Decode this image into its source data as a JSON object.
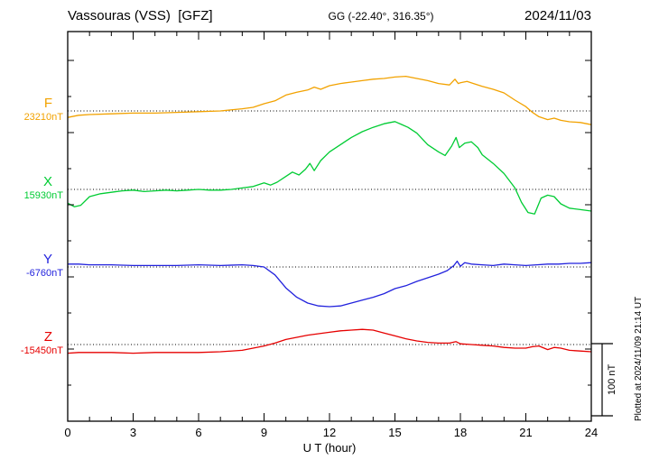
{
  "header": {
    "station_title": "Vassouras (VSS)  [GFZ]",
    "geo_coords": "GG (-22.40°, 316.35°)",
    "date": "2024/11/03"
  },
  "x_axis": {
    "label": "U T (hour)"
  },
  "scale_bar": {
    "label": "100 nT"
  },
  "plot_note": "Plotted at 2024/11/09 21:14 UT",
  "chart_data": {
    "type": "line",
    "title": "Vassouras (VSS) [GFZ] magnetogram for 2024/11/03",
    "xlabel": "U T (hour)",
    "x_range": [
      0,
      24
    ],
    "x_ticks": [
      0,
      3,
      6,
      9,
      12,
      15,
      18,
      21,
      24
    ],
    "grid": "dotted horizontal baseline per component",
    "scale_bar_nT": 100,
    "series": [
      {
        "name": "F",
        "color": "#f2a200",
        "baseline_label": "23210nT",
        "baseline_nT": 23210,
        "unit": "nT",
        "x": [
          0,
          0.5,
          1,
          2,
          3,
          4,
          5,
          6,
          7,
          8,
          8.5,
          9,
          9.5,
          10,
          10.5,
          11,
          11.3,
          11.6,
          12,
          12.5,
          13,
          13.5,
          14,
          14.5,
          15,
          15.5,
          16,
          16.5,
          17,
          17.5,
          17.75,
          17.9,
          18,
          18.3,
          18.6,
          19,
          19.5,
          20,
          20.5,
          21,
          21.3,
          21.6,
          22,
          22.3,
          22.6,
          23,
          23.5,
          24
        ],
        "deviation_nT": [
          -9,
          -6,
          -5,
          -4,
          -3,
          -3,
          -2,
          -1,
          0,
          3,
          5,
          10,
          14,
          22,
          26,
          29,
          33,
          30,
          35,
          38,
          40,
          42,
          44,
          45,
          47,
          48,
          45,
          42,
          38,
          36,
          44,
          38,
          39,
          41,
          38,
          34,
          30,
          25,
          15,
          6,
          -2,
          -8,
          -12,
          -10,
          -13,
          -15,
          -16,
          -19
        ]
      },
      {
        "name": "X",
        "color": "#00cc33",
        "baseline_label": "15930nT",
        "baseline_nT": 15930,
        "unit": "nT",
        "x": [
          0,
          0.3,
          0.6,
          1,
          1.5,
          2,
          2.5,
          3,
          3.5,
          4,
          4.5,
          5,
          5.5,
          6,
          6.5,
          7,
          7.5,
          8,
          8.5,
          9,
          9.3,
          9.6,
          10,
          10.3,
          10.6,
          10.9,
          11.1,
          11.3,
          11.6,
          12,
          12.5,
          13,
          13.5,
          14,
          14.5,
          15,
          15.3,
          15.6,
          16,
          16.5,
          17,
          17.3,
          17.6,
          17.8,
          17.95,
          18.2,
          18.5,
          18.8,
          19,
          19.5,
          20,
          20.5,
          20.8,
          21.1,
          21.4,
          21.7,
          22,
          22.3,
          22.6,
          23,
          23.5,
          24
        ],
        "deviation_nT": [
          -19,
          -24,
          -22,
          -10,
          -6,
          -4,
          -2,
          -1,
          -3,
          -2,
          -1,
          -2,
          -1,
          0,
          -1,
          -1,
          0,
          2,
          4,
          9,
          6,
          10,
          18,
          24,
          20,
          28,
          36,
          26,
          40,
          52,
          62,
          72,
          80,
          86,
          91,
          94,
          90,
          86,
          78,
          62,
          52,
          47,
          60,
          72,
          58,
          64,
          66,
          58,
          48,
          36,
          22,
          2,
          -18,
          -32,
          -34,
          -12,
          -8,
          -10,
          -20,
          -26,
          -28,
          -30
        ]
      },
      {
        "name": "Y",
        "color": "#2222dd",
        "baseline_label": "-6760nT",
        "baseline_nT": -6760,
        "unit": "nT",
        "x": [
          0,
          0.5,
          1,
          2,
          3,
          4,
          5,
          6,
          7,
          8,
          8.5,
          9,
          9.5,
          10,
          10.5,
          11,
          11.5,
          12,
          12.5,
          13,
          13.5,
          14,
          14.5,
          15,
          15.5,
          16,
          16.5,
          17,
          17.4,
          17.7,
          17.85,
          18,
          18.2,
          18.5,
          19,
          19.5,
          20,
          20.5,
          21,
          21.5,
          22,
          22.5,
          23,
          23.5,
          24
        ],
        "deviation_nT": [
          4,
          4,
          3,
          3,
          2,
          2,
          2,
          3,
          2,
          3,
          2,
          0,
          -11,
          -29,
          -42,
          -50,
          -54,
          -55,
          -54,
          -50,
          -46,
          -42,
          -37,
          -30,
          -26,
          -20,
          -15,
          -10,
          -5,
          2,
          8,
          1,
          6,
          4,
          3,
          2,
          4,
          3,
          2,
          3,
          4,
          4,
          5,
          5,
          6
        ]
      },
      {
        "name": "Z",
        "color": "#e60000",
        "baseline_label": "-15450nT",
        "baseline_nT": -15450,
        "unit": "nT",
        "x": [
          0,
          0.5,
          1,
          2,
          3,
          4,
          5,
          6,
          7,
          8,
          8.5,
          9,
          9.5,
          10,
          10.5,
          11,
          11.5,
          12,
          12.5,
          13,
          13.5,
          14,
          14.5,
          15,
          15.5,
          16,
          16.5,
          17,
          17.5,
          17.8,
          18,
          18.5,
          19,
          19.5,
          20,
          20.5,
          21,
          21.3,
          21.6,
          22,
          22.3,
          22.6,
          23,
          23.5,
          24
        ],
        "deviation_nT": [
          -12,
          -11,
          -11,
          -11,
          -12,
          -11,
          -11,
          -11,
          -10,
          -8,
          -5,
          -2,
          2,
          7,
          10,
          13,
          15,
          17,
          19,
          20,
          21,
          20,
          16,
          12,
          8,
          5,
          3,
          2,
          2,
          4,
          1,
          0,
          -1,
          -2,
          -4,
          -5,
          -5,
          -3,
          -2,
          -7,
          -4,
          -5,
          -8,
          -9,
          -10
        ]
      }
    ]
  }
}
